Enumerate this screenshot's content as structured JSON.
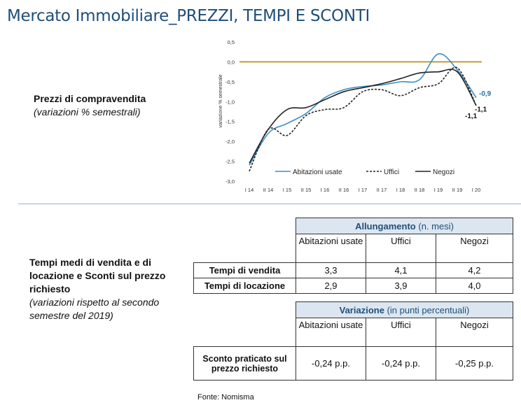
{
  "title": "Mercato Immobiliare_PREZZI, TEMPI E SCONTI",
  "section1": {
    "label_bold": "Prezzi di compravendita",
    "label_italic": "(variazioni % semestrali)"
  },
  "chart_data": {
    "type": "line",
    "ylabel": "variazione % semestrale",
    "ylim": [
      -3.0,
      0.5
    ],
    "yticks": [
      "0,5",
      "0,0",
      "-0,5",
      "-1,0",
      "-1,5",
      "-2,0",
      "-2,5",
      "-3,0"
    ],
    "categories": [
      "I 14",
      "II 14",
      "I 15",
      "II 15",
      "I 16",
      "II 16",
      "I 17",
      "II 17",
      "I 18",
      "II 18",
      "I 19",
      "II 19",
      "I 20"
    ],
    "series": [
      {
        "name": "Abitazioni usate",
        "color": "#3b8fc4",
        "style": "solid",
        "values": [
          -2.6,
          -1.8,
          -1.55,
          -1.3,
          -0.9,
          -0.7,
          -0.62,
          -0.58,
          -0.5,
          -0.45,
          0.2,
          -0.2,
          -0.9
        ]
      },
      {
        "name": "Uffici",
        "color": "#222222",
        "style": "dashed",
        "values": [
          -2.75,
          -1.7,
          -1.85,
          -1.35,
          -1.2,
          -1.15,
          -0.75,
          -0.7,
          -0.85,
          -0.65,
          -0.55,
          -0.15,
          -1.1
        ]
      },
      {
        "name": "Negozi",
        "color": "#222222",
        "style": "solid",
        "values": [
          -2.55,
          -1.7,
          -1.2,
          -1.15,
          -0.95,
          -0.75,
          -0.65,
          -0.55,
          -0.42,
          -0.28,
          -0.25,
          -0.25,
          -1.1
        ]
      }
    ],
    "end_labels": [
      {
        "text": "-0,9",
        "color": "#1f6fa8"
      },
      {
        "text": "-1,1",
        "color": "#111111"
      },
      {
        "text": "-1,1",
        "color": "#111111"
      }
    ],
    "reference_line": {
      "y": 0.0,
      "color": "#b8860b"
    },
    "legend_position": "bottom"
  },
  "section2": {
    "label_bold": "Tempi medi di vendita e di locazione e Sconti sul prezzo richiesto",
    "label_italic": "(variazioni rispetto al secondo semestre del 2019)"
  },
  "table1": {
    "header_bold": "Allungamento",
    "header_unit": "(n. mesi)",
    "columns": [
      "Abitazioni usate",
      "Uffici",
      "Negozi"
    ],
    "rows": [
      {
        "label": "Tempi di vendita",
        "values": [
          "3,3",
          "4,1",
          "4,2"
        ]
      },
      {
        "label": "Tempi di locazione",
        "values": [
          "2,9",
          "3,9",
          "4,0"
        ]
      }
    ]
  },
  "table2": {
    "header_bold": "Variazione",
    "header_unit": "(in punti percentuali)",
    "columns": [
      "Abitazioni usate",
      "Uffici",
      "Negozi"
    ],
    "rows": [
      {
        "label": "Sconto praticato sul prezzo richiesto",
        "values": [
          "-0,24 p.p.",
          "-0,24 p.p.",
          "-0,25 p.p."
        ]
      }
    ]
  },
  "source": "Fonte: Nomisma"
}
